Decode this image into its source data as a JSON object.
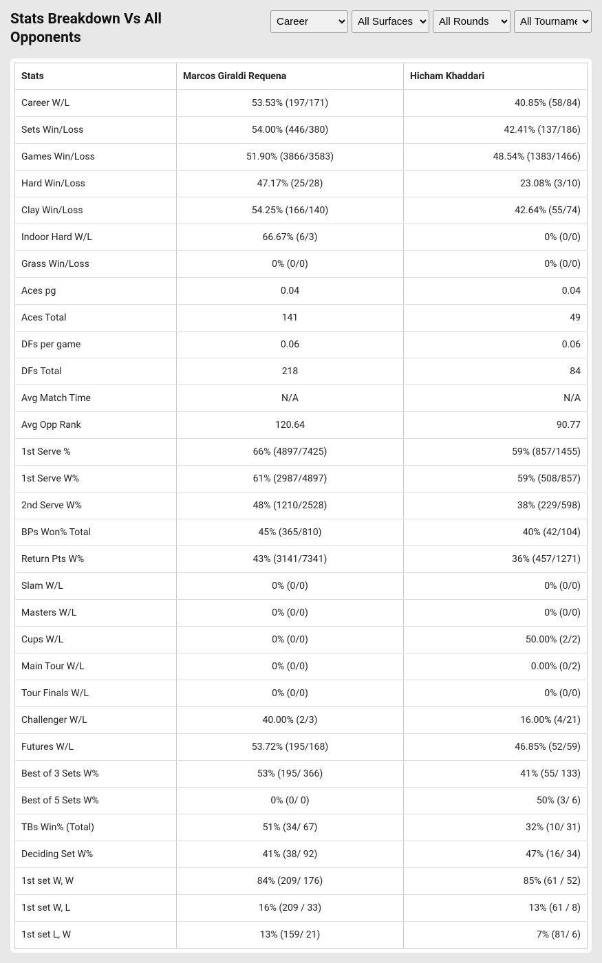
{
  "title": "Stats Breakdown Vs All Opponents",
  "filters": {
    "career": "Career",
    "surface": "All Surfaces",
    "rounds": "All Rounds",
    "tournament": "All Tournaments"
  },
  "table": {
    "headers": {
      "stats": "Stats",
      "player1": "Marcos Giraldi Requena",
      "player2": "Hicham Khaddari"
    },
    "rows": [
      {
        "stat": "Career W/L",
        "p1": "53.53% (197/171)",
        "p2": "40.85% (58/84)"
      },
      {
        "stat": "Sets Win/Loss",
        "p1": "54.00% (446/380)",
        "p2": "42.41% (137/186)"
      },
      {
        "stat": "Games Win/Loss",
        "p1": "51.90% (3866/3583)",
        "p2": "48.54% (1383/1466)"
      },
      {
        "stat": "Hard Win/Loss",
        "p1": "47.17% (25/28)",
        "p2": "23.08% (3/10)"
      },
      {
        "stat": "Clay Win/Loss",
        "p1": "54.25% (166/140)",
        "p2": "42.64% (55/74)"
      },
      {
        "stat": "Indoor Hard W/L",
        "p1": "66.67% (6/3)",
        "p2": "0% (0/0)"
      },
      {
        "stat": "Grass Win/Loss",
        "p1": "0% (0/0)",
        "p2": "0% (0/0)"
      },
      {
        "stat": "Aces pg",
        "p1": "0.04",
        "p2": "0.04"
      },
      {
        "stat": "Aces Total",
        "p1": "141",
        "p2": "49"
      },
      {
        "stat": "DFs per game",
        "p1": "0.06",
        "p2": "0.06"
      },
      {
        "stat": "DFs Total",
        "p1": "218",
        "p2": "84"
      },
      {
        "stat": "Avg Match Time",
        "p1": "N/A",
        "p2": "N/A"
      },
      {
        "stat": "Avg Opp Rank",
        "p1": "120.64",
        "p2": "90.77"
      },
      {
        "stat": "1st Serve %",
        "p1": "66% (4897/7425)",
        "p2": "59% (857/1455)"
      },
      {
        "stat": "1st Serve W%",
        "p1": "61% (2987/4897)",
        "p2": "59% (508/857)"
      },
      {
        "stat": "2nd Serve W%",
        "p1": "48% (1210/2528)",
        "p2": "38% (229/598)"
      },
      {
        "stat": "BPs Won% Total",
        "p1": "45% (365/810)",
        "p2": "40% (42/104)"
      },
      {
        "stat": "Return Pts W%",
        "p1": "43% (3141/7341)",
        "p2": "36% (457/1271)"
      },
      {
        "stat": "Slam W/L",
        "p1": "0% (0/0)",
        "p2": "0% (0/0)"
      },
      {
        "stat": "Masters W/L",
        "p1": "0% (0/0)",
        "p2": "0% (0/0)"
      },
      {
        "stat": "Cups W/L",
        "p1": "0% (0/0)",
        "p2": "50.00% (2/2)"
      },
      {
        "stat": "Main Tour W/L",
        "p1": "0% (0/0)",
        "p2": "0.00% (0/2)"
      },
      {
        "stat": "Tour Finals W/L",
        "p1": "0% (0/0)",
        "p2": "0% (0/0)"
      },
      {
        "stat": "Challenger W/L",
        "p1": "40.00% (2/3)",
        "p2": "16.00% (4/21)"
      },
      {
        "stat": "Futures W/L",
        "p1": "53.72% (195/168)",
        "p2": "46.85% (52/59)"
      },
      {
        "stat": "Best of 3 Sets W%",
        "p1": "53% (195/ 366)",
        "p2": "41% (55/ 133)"
      },
      {
        "stat": "Best of 5 Sets W%",
        "p1": "0% (0/ 0)",
        "p2": "50% (3/ 6)"
      },
      {
        "stat": "TBs Win% (Total)",
        "p1": "51% (34/ 67)",
        "p2": "32% (10/ 31)"
      },
      {
        "stat": "Deciding Set W%",
        "p1": "41% (38/ 92)",
        "p2": "47% (16/ 34)"
      },
      {
        "stat": "1st set W, W",
        "p1": "84% (209/ 176)",
        "p2": "85% (61 / 52)"
      },
      {
        "stat": "1st set W, L",
        "p1": "16% (209 / 33)",
        "p2": "13% (61 / 8)"
      },
      {
        "stat": "1st set L, W",
        "p1": "13% (159/ 21)",
        "p2": "7% (81/ 6)"
      }
    ]
  }
}
